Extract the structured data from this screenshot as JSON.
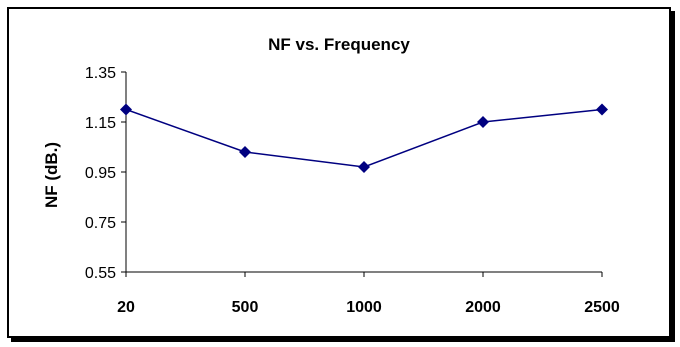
{
  "chart_data": {
    "type": "line",
    "title": "NF vs. Frequency",
    "xlabel": "",
    "ylabel": "NF (dB.)",
    "categories": [
      "20",
      "500",
      "1000",
      "2000",
      "2500"
    ],
    "series": [
      {
        "values": [
          1.2,
          1.03,
          0.97,
          1.15,
          1.2
        ]
      }
    ],
    "ylim": [
      0.55,
      1.35
    ],
    "yticks": [
      "0.55",
      "0.75",
      "0.95",
      "1.15",
      "1.35"
    ],
    "grid": false,
    "legend": "none",
    "colors": {
      "series": "#000080",
      "axis": "#000000"
    }
  }
}
